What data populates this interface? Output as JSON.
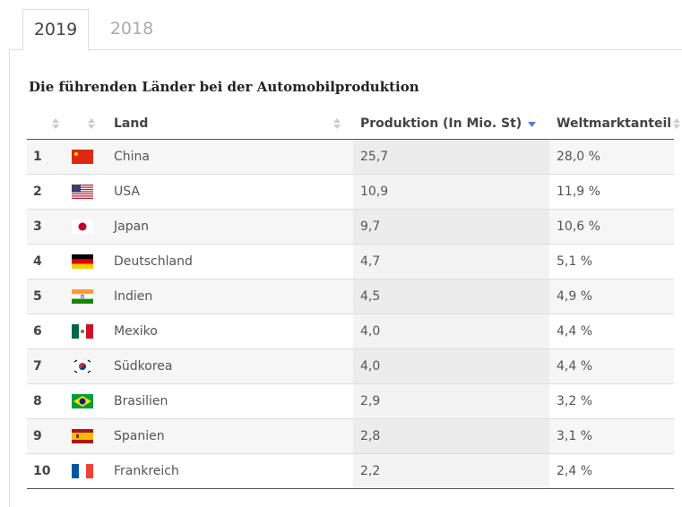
{
  "tabs": [
    "2019",
    "2018"
  ],
  "title": "Die führenden Länder bei der Automobilproduktion",
  "table": {
    "columns": [
      "Land",
      "Produktion (In Mio. St)",
      "Weltmarktanteil"
    ],
    "rows": [
      [
        1,
        "China",
        "25,7",
        "28,0 %"
      ],
      [
        2,
        "USA",
        "10,9",
        "11,9 %"
      ],
      [
        3,
        "Japan",
        "9,7",
        "10,6 %"
      ],
      [
        4,
        "Deutschland",
        "4,7",
        "5,1 %"
      ],
      [
        5,
        "Indien",
        "4,5",
        "4,9 %"
      ],
      [
        6,
        "Mexiko",
        "4,0",
        "4,4 %"
      ],
      [
        7,
        "Südkorea",
        "4,0",
        "4,4 %"
      ],
      [
        8,
        "Brasilien",
        "2,9",
        "3,2 %"
      ],
      [
        9,
        "Spanien",
        "2,8",
        "3,1 %"
      ],
      [
        10,
        "Frankreich",
        "2,2",
        "2,4 %"
      ]
    ]
  }
}
